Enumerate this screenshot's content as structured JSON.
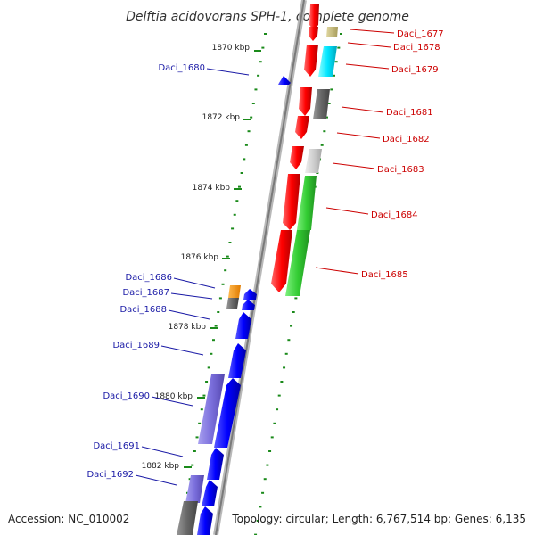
{
  "title": "Delftia acidovorans SPH-1, complete genome",
  "footer": {
    "accession": "Accession: NC_010002",
    "summary": "Topology: circular; Length: 6,767,514 bp; Genes: 6,135"
  },
  "colors": {
    "forward_gene": "#ff0000",
    "reverse_gene": "#0000ff",
    "forward_label": "#cc0000",
    "reverse_label": "#1a1aa6",
    "tick": "#1a8a1a",
    "backbone": "#888888"
  },
  "kbp_labels": [
    "1870 kbp",
    "1872 kbp",
    "1874 kbp",
    "1876 kbp",
    "1878 kbp",
    "1880 kbp",
    "1882 kbp"
  ],
  "genes_right": [
    "Daci_1677",
    "Daci_1678",
    "Daci_1679",
    "Daci_1681",
    "Daci_1682",
    "Daci_1683",
    "Daci_1684",
    "Daci_1685"
  ],
  "genes_left": [
    "Daci_1680",
    "Daci_1686",
    "Daci_1687",
    "Daci_1688",
    "Daci_1689",
    "Daci_1690",
    "Daci_1691",
    "Daci_1692"
  ]
}
